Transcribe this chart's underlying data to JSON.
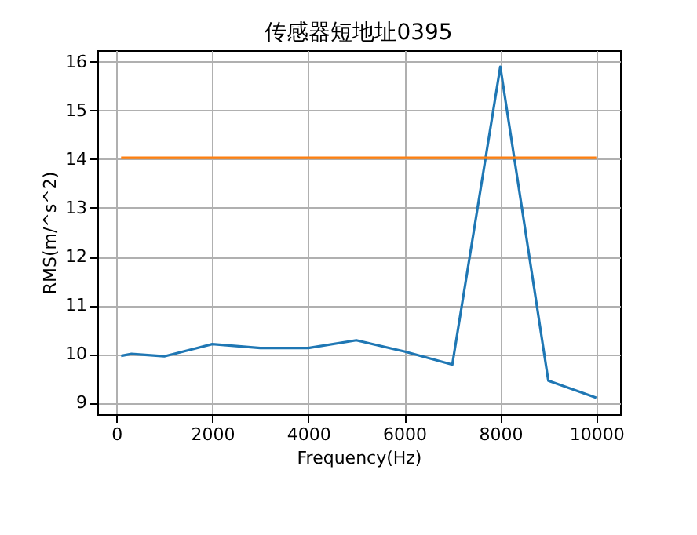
{
  "chart_data": {
    "type": "line",
    "title": "传感器短地址0395",
    "xlabel": "Frequency(Hz)",
    "ylabel": "RMS(m/^s^2)",
    "x": [
      100,
      315,
      1000,
      2000,
      3000,
      4000,
      5000,
      6000,
      7000,
      8000,
      9000,
      10000
    ],
    "series": [
      {
        "color": "#1f77b4",
        "values": [
          9.96,
          10.0,
          9.95,
          10.2,
          10.12,
          10.12,
          10.28,
          10.05,
          9.78,
          15.9,
          9.45,
          9.1
        ]
      },
      {
        "color": "#ff7f0e",
        "x": [
          100,
          10000
        ],
        "values": [
          14.03,
          14.03
        ]
      }
    ],
    "xlim": [
      -395,
      10495
    ],
    "ylim": [
      8.76,
      16.24
    ],
    "xticks": [
      0,
      2000,
      4000,
      6000,
      8000,
      10000
    ],
    "yticks": [
      9,
      10,
      11,
      12,
      13,
      14,
      15,
      16
    ],
    "grid": true,
    "line_style": "solid",
    "marker": "none"
  }
}
